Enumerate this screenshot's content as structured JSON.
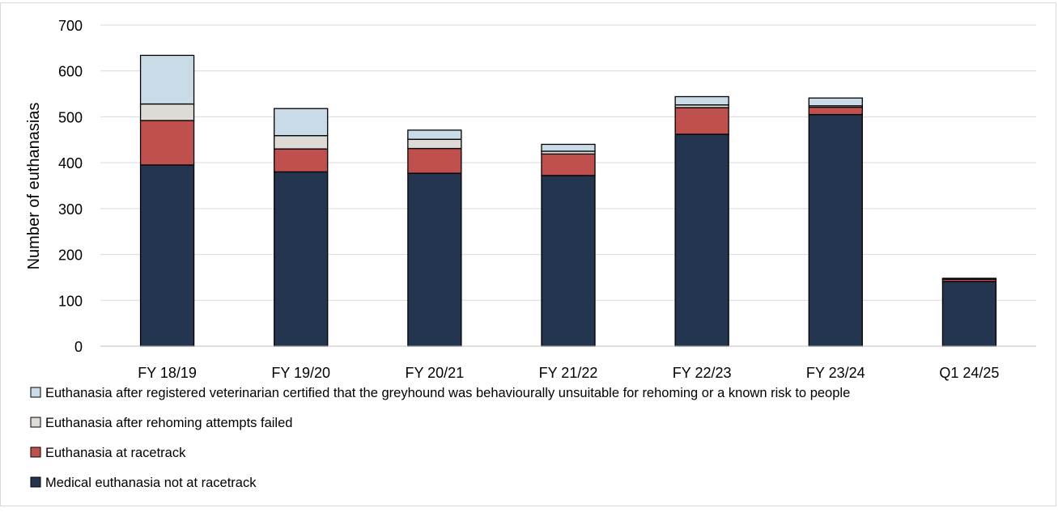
{
  "chart_data": {
    "type": "bar",
    "stacked": true,
    "title": "",
    "xlabel": "",
    "ylabel": "Number of euthanasias",
    "ylim": [
      0,
      700
    ],
    "yticks": [
      0,
      100,
      200,
      300,
      400,
      500,
      600,
      700
    ],
    "grid": "horizontal",
    "legend_position": "bottom",
    "categories": [
      "FY 18/19",
      "FY 19/20",
      "FY 20/21",
      "FY 21/22",
      "FY 22/23",
      "FY 23/24",
      "Q1 24/25"
    ],
    "series": [
      {
        "name": "Medical euthanasia not at racetrack",
        "color": "#243550",
        "values": [
          395,
          380,
          377,
          372,
          462,
          505,
          141
        ]
      },
      {
        "name": "Euthanasia at racetrack",
        "color": "#c0504d",
        "values": [
          97,
          50,
          54,
          47,
          58,
          16,
          5
        ]
      },
      {
        "name": "Euthanasia after rehoming attempts failed",
        "color": "#dedbd7",
        "values": [
          36,
          29,
          20,
          6,
          6,
          3,
          1
        ]
      },
      {
        "name": "Euthanasia after registered veterinarian certified that the greyhound was behaviourally unsuitable for rehoming or a known risk to people",
        "color": "#c8dbe6",
        "values": [
          106,
          59,
          20,
          15,
          18,
          17,
          1
        ]
      }
    ]
  }
}
